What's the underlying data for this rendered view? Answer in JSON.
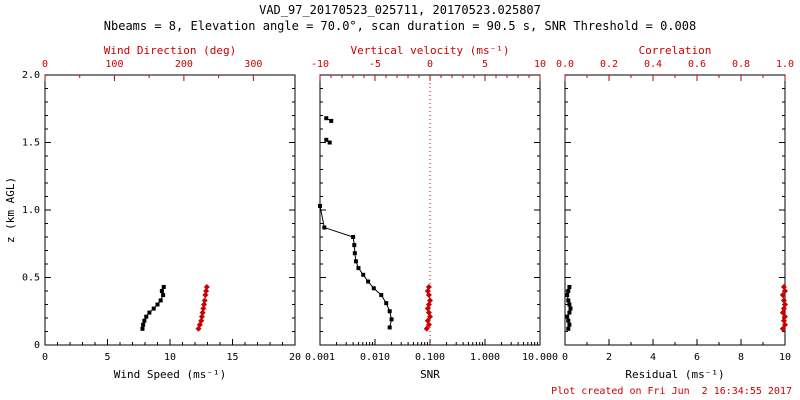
{
  "header": {
    "title": "VAD_97_20170523_025711, 20170523.025807",
    "subtitle": "Nbeams = 8, Elevation angle = 70.0°, scan duration = 90.5 s, SNR Threshold = 0.008"
  },
  "footer": {
    "created": "Plot created on Fri Jun  2 16:34:55 2017"
  },
  "colors": {
    "axis": "#000000",
    "accent": "#cc0000",
    "background": "#ffffff"
  },
  "chart_data": {
    "type": "line",
    "title": "VAD_97_20170523_025711, 20170523.025807",
    "ylabel": "z (km AGL)",
    "ylim": [
      0,
      2
    ],
    "panels": [
      {
        "id": "wind",
        "x_bottom": {
          "label": "Wind Speed (ms⁻¹)",
          "scale": "linear",
          "min": 0,
          "max": 20,
          "minor_step": 1,
          "ticks": [
            {
              "v": 0,
              "l": "0"
            },
            {
              "v": 5,
              "l": "5"
            },
            {
              "v": 10,
              "l": "10"
            },
            {
              "v": 15,
              "l": "15"
            },
            {
              "v": 20,
              "l": "20"
            }
          ]
        },
        "x_top": {
          "label": "Wind Direction (deg)",
          "scale": "linear",
          "min": 0,
          "max": 360,
          "minor_step": 50,
          "ticks": [
            {
              "v": 0,
              "l": "0"
            },
            {
              "v": 100,
              "l": "100"
            },
            {
              "v": 200,
              "l": "200"
            },
            {
              "v": 300,
              "l": "300"
            }
          ]
        },
        "y": {
          "min": 0,
          "max": 2,
          "minor_step": 0.1,
          "show_labels": true,
          "ticks": [
            {
              "v": 0,
              "l": "0"
            },
            {
              "v": 0.5,
              "l": "0.5"
            },
            {
              "v": 1,
              "l": "1.0"
            },
            {
              "v": 1.5,
              "l": "1.5"
            },
            {
              "v": 2,
              "l": "2.0"
            }
          ]
        },
        "series": [
          {
            "name": "wind-speed",
            "axis": "bottom",
            "color": "#000000",
            "marker": "square",
            "segments": [
              [
                [
                  7.8,
                  0.12
                ],
                [
                  7.85,
                  0.15
                ],
                [
                  7.95,
                  0.18
                ],
                [
                  8.1,
                  0.21
                ],
                [
                  8.35,
                  0.24
                ],
                [
                  8.7,
                  0.27
                ],
                [
                  9.0,
                  0.3
                ],
                [
                  9.25,
                  0.33
                ],
                [
                  9.45,
                  0.37
                ],
                [
                  9.35,
                  0.4
                ],
                [
                  9.5,
                  0.43
                ]
              ]
            ]
          },
          {
            "name": "wind-direction",
            "axis": "top",
            "color": "#cc0000",
            "marker": "diamond",
            "segments": [
              [
                [
                  221,
                  0.12
                ],
                [
                  223,
                  0.15
                ],
                [
                  225,
                  0.18
                ],
                [
                  226,
                  0.21
                ],
                [
                  227,
                  0.24
                ],
                [
                  228,
                  0.27
                ],
                [
                  229,
                  0.3
                ],
                [
                  230,
                  0.33
                ],
                [
                  231,
                  0.37
                ],
                [
                  232,
                  0.4
                ],
                [
                  233,
                  0.43
                ]
              ]
            ]
          }
        ]
      },
      {
        "id": "snr",
        "x_bottom": {
          "label": "SNR",
          "scale": "log",
          "min": 0.001,
          "max": 10,
          "ticks": [
            {
              "v": 0.001,
              "l": "0.001"
            },
            {
              "v": 0.01,
              "l": "0.010"
            },
            {
              "v": 0.1,
              "l": "0.100"
            },
            {
              "v": 1,
              "l": "1.000"
            },
            {
              "v": 10,
              "l": "10.000"
            }
          ]
        },
        "x_top": {
          "label": "Vertical velocity (ms⁻¹)",
          "scale": "linear",
          "min": -10,
          "max": 10,
          "minor_step": 1,
          "ticks": [
            {
              "v": -10,
              "l": "-10"
            },
            {
              "v": -5,
              "l": "-5"
            },
            {
              "v": 0,
              "l": "0"
            },
            {
              "v": 5,
              "l": "5"
            },
            {
              "v": 10,
              "l": "10"
            }
          ]
        },
        "y": {
          "min": 0,
          "max": 2,
          "minor_step": 0.1,
          "show_labels": false,
          "ticks": [
            {
              "v": 0,
              "l": "0"
            },
            {
              "v": 0.5,
              "l": "0.5"
            },
            {
              "v": 1,
              "l": "1.0"
            },
            {
              "v": 1.5,
              "l": "1.5"
            },
            {
              "v": 2,
              "l": "2.0"
            }
          ]
        },
        "ref_line": {
          "axis": "top",
          "value": 0,
          "color": "#cc0000",
          "style": "dotted"
        },
        "series": [
          {
            "name": "snr-profile",
            "axis": "bottom",
            "color": "#000000",
            "marker": "square",
            "segments": [
              [
                [
                  0.0013,
                  1.68
                ],
                [
                  0.0016,
                  1.66
                ]
              ],
              [
                [
                  0.0013,
                  1.52
                ],
                [
                  0.0015,
                  1.5
                ]
              ],
              [
                [
                  0.001,
                  1.03
                ],
                [
                  0.0012,
                  0.87
                ],
                [
                  0.004,
                  0.8
                ],
                [
                  0.0042,
                  0.74
                ],
                [
                  0.0043,
                  0.68
                ],
                [
                  0.0045,
                  0.62
                ],
                [
                  0.005,
                  0.57
                ],
                [
                  0.0061,
                  0.52
                ],
                [
                  0.0075,
                  0.47
                ],
                [
                  0.0095,
                  0.42
                ],
                [
                  0.013,
                  0.37
                ],
                [
                  0.016,
                  0.31
                ],
                [
                  0.0185,
                  0.25
                ],
                [
                  0.02,
                  0.19
                ],
                [
                  0.0185,
                  0.13
                ]
              ]
            ]
          },
          {
            "name": "vertical-velocity",
            "axis": "top",
            "color": "#cc0000",
            "marker": "diamond",
            "segments": [
              [
                [
                  -0.3,
                  0.12
                ],
                [
                  -0.1,
                  0.15
                ],
                [
                  -0.2,
                  0.18
                ],
                [
                  0,
                  0.21
                ],
                [
                  -0.1,
                  0.24
                ],
                [
                  -0.2,
                  0.27
                ],
                [
                  -0.1,
                  0.3
                ],
                [
                  0,
                  0.33
                ],
                [
                  -0.1,
                  0.37
                ],
                [
                  -0.2,
                  0.4
                ],
                [
                  -0.1,
                  0.43
                ]
              ]
            ]
          }
        ]
      },
      {
        "id": "residual",
        "x_bottom": {
          "label": "Residual (ms⁻¹)",
          "scale": "linear",
          "min": 0,
          "max": 10,
          "minor_step": 1,
          "ticks": [
            {
              "v": 0,
              "l": "0"
            },
            {
              "v": 2,
              "l": "2"
            },
            {
              "v": 4,
              "l": "4"
            },
            {
              "v": 6,
              "l": "6"
            },
            {
              "v": 8,
              "l": "8"
            },
            {
              "v": 10,
              "l": "10"
            }
          ]
        },
        "x_top": {
          "label": "Correlation",
          "scale": "linear",
          "min": 0,
          "max": 1,
          "minor_step": 0.1,
          "ticks": [
            {
              "v": 0,
              "l": "0.0"
            },
            {
              "v": 0.2,
              "l": "0.2"
            },
            {
              "v": 0.4,
              "l": "0.4"
            },
            {
              "v": 0.6,
              "l": "0.6"
            },
            {
              "v": 0.8,
              "l": "0.8"
            },
            {
              "v": 1,
              "l": "1.0"
            }
          ]
        },
        "y": {
          "min": 0,
          "max": 2,
          "minor_step": 0.1,
          "show_labels": false,
          "ticks": [
            {
              "v": 0,
              "l": "0"
            },
            {
              "v": 0.5,
              "l": "0.5"
            },
            {
              "v": 1,
              "l": "1.0"
            },
            {
              "v": 1.5,
              "l": "1.5"
            },
            {
              "v": 2,
              "l": "2.0"
            }
          ]
        },
        "series": [
          {
            "name": "residual",
            "axis": "bottom",
            "color": "#000000",
            "marker": "square",
            "segments": [
              [
                [
                  0.15,
                  0.12
                ],
                [
                  0.2,
                  0.15
                ],
                [
                  0.15,
                  0.18
                ],
                [
                  0.1,
                  0.21
                ],
                [
                  0.2,
                  0.24
                ],
                [
                  0.25,
                  0.27
                ],
                [
                  0.2,
                  0.3
                ],
                [
                  0.15,
                  0.33
                ],
                [
                  0.1,
                  0.37
                ],
                [
                  0.15,
                  0.4
                ],
                [
                  0.2,
                  0.43
                ]
              ]
            ]
          },
          {
            "name": "correlation",
            "axis": "top",
            "color": "#cc0000",
            "marker": "diamond",
            "segments": [
              [
                [
                  0.99,
                  0.12
                ],
                [
                  1,
                  0.15
                ],
                [
                  0.995,
                  0.18
                ],
                [
                  1,
                  0.21
                ],
                [
                  0.99,
                  0.24
                ],
                [
                  0.995,
                  0.27
                ],
                [
                  1,
                  0.3
                ],
                [
                  0.995,
                  0.33
                ],
                [
                  0.99,
                  0.37
                ],
                [
                  1,
                  0.4
                ],
                [
                  0.995,
                  0.43
                ]
              ]
            ]
          }
        ]
      }
    ]
  }
}
